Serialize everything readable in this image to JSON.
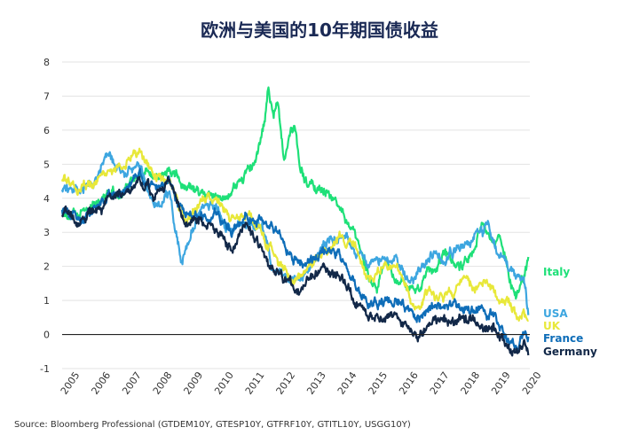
{
  "chart_data": {
    "type": "line",
    "title": "欧洲与美国的10年期国债收益",
    "source": "Source: Bloomberg Professional (GTDEM10Y, GTESP10Y, GTFRF10Y, GTITL10Y, USGG10Y)",
    "xlim": [
      2005,
      2020.2
    ],
    "ylim": [
      -1,
      8
    ],
    "yticks": [
      "8",
      "7",
      "6",
      "5",
      "4",
      "3",
      "2",
      "1",
      "0",
      "-1"
    ],
    "xticks": [
      "2005",
      "2006",
      "2007",
      "2008",
      "2009",
      "2010",
      "2011",
      "2012",
      "2013",
      "2014",
      "2015",
      "2016",
      "2017",
      "2018",
      "2019",
      "2020"
    ],
    "grid": "horizontal",
    "series": [
      {
        "name": "Italy",
        "color": "#1ee078",
        "x": [
          2005.0,
          2005.5,
          2006.0,
          2006.5,
          2007.0,
          2007.5,
          2008.0,
          2008.5,
          2009.0,
          2009.5,
          2010.0,
          2010.5,
          2011.0,
          2011.3,
          2011.55,
          2011.7,
          2011.85,
          2012.0,
          2012.2,
          2012.4,
          2012.55,
          2012.7,
          2013.0,
          2013.5,
          2014.0,
          2014.5,
          2015.0,
          2015.25,
          2015.5,
          2016.0,
          2016.5,
          2017.0,
          2017.5,
          2018.0,
          2018.35,
          2018.6,
          2018.8,
          2019.0,
          2019.3,
          2019.6,
          2019.75,
          2020.0,
          2020.15
        ],
        "y": [
          3.7,
          3.4,
          3.9,
          4.2,
          4.1,
          4.8,
          4.6,
          4.8,
          4.3,
          4.1,
          4.0,
          4.2,
          4.8,
          5.1,
          6.0,
          7.2,
          6.5,
          6.8,
          5.2,
          6.0,
          6.2,
          5.0,
          4.4,
          4.3,
          3.8,
          2.8,
          1.6,
          1.4,
          2.1,
          1.5,
          1.2,
          1.9,
          2.2,
          2.0,
          2.5,
          3.3,
          3.0,
          2.8,
          2.6,
          1.6,
          1.0,
          1.6,
          2.2
        ]
      },
      {
        "name": "USA",
        "color": "#3da6e0",
        "x": [
          2005.0,
          2005.5,
          2006.0,
          2006.5,
          2007.0,
          2007.5,
          2008.0,
          2008.5,
          2008.9,
          2009.0,
          2009.5,
          2010.0,
          2010.5,
          2011.0,
          2011.5,
          2011.8,
          2012.0,
          2012.5,
          2013.0,
          2013.5,
          2014.0,
          2014.5,
          2015.0,
          2015.5,
          2016.0,
          2016.5,
          2017.0,
          2017.5,
          2018.0,
          2018.5,
          2018.85,
          2019.0,
          2019.5,
          2019.8,
          2020.0,
          2020.15
        ],
        "y": [
          4.3,
          4.2,
          4.5,
          5.2,
          4.8,
          5.0,
          3.8,
          4.0,
          2.2,
          2.5,
          3.7,
          3.8,
          3.0,
          3.4,
          3.1,
          2.0,
          1.9,
          1.6,
          1.9,
          2.6,
          2.9,
          2.5,
          2.0,
          2.2,
          1.8,
          1.5,
          2.4,
          2.3,
          2.5,
          2.9,
          3.2,
          2.7,
          2.0,
          1.7,
          1.8,
          0.7
        ]
      },
      {
        "name": "UK",
        "color": "#e8e83a",
        "x": [
          2005.0,
          2005.5,
          2006.0,
          2006.5,
          2007.0,
          2007.5,
          2008.0,
          2008.5,
          2009.0,
          2009.5,
          2010.0,
          2010.5,
          2011.0,
          2011.5,
          2011.8,
          2012.0,
          2012.5,
          2013.0,
          2013.5,
          2014.0,
          2014.5,
          2015.0,
          2015.5,
          2016.0,
          2016.5,
          2017.0,
          2017.5,
          2018.0,
          2018.5,
          2019.0,
          2019.5,
          2019.8,
          2020.0,
          2020.15
        ],
        "y": [
          4.6,
          4.3,
          4.5,
          4.7,
          5.0,
          5.4,
          4.6,
          4.6,
          3.3,
          3.8,
          4.0,
          3.4,
          3.6,
          3.1,
          2.4,
          2.1,
          1.6,
          1.9,
          2.5,
          2.8,
          2.5,
          1.7,
          2.0,
          1.8,
          0.8,
          1.3,
          1.2,
          1.4,
          1.4,
          1.3,
          0.9,
          0.5,
          0.8,
          0.3
        ]
      },
      {
        "name": "France",
        "color": "#0e6db8",
        "x": [
          2005.0,
          2005.5,
          2006.0,
          2006.5,
          2007.0,
          2007.5,
          2008.0,
          2008.5,
          2009.0,
          2009.5,
          2010.0,
          2010.5,
          2011.0,
          2011.5,
          2011.8,
          2012.0,
          2012.5,
          2013.0,
          2013.5,
          2014.0,
          2014.5,
          2015.0,
          2015.5,
          2016.0,
          2016.5,
          2017.0,
          2017.5,
          2018.0,
          2018.5,
          2019.0,
          2019.5,
          2019.8,
          2020.0,
          2020.15
        ],
        "y": [
          3.7,
          3.3,
          3.6,
          4.0,
          4.2,
          4.6,
          4.2,
          4.5,
          3.5,
          3.6,
          3.5,
          3.0,
          3.5,
          3.3,
          3.3,
          3.0,
          2.2,
          2.2,
          2.5,
          2.4,
          1.5,
          0.8,
          1.0,
          0.9,
          0.3,
          0.8,
          0.8,
          0.8,
          0.7,
          0.6,
          -0.2,
          -0.3,
          0.0,
          -0.1
        ]
      },
      {
        "name": "Germany",
        "color": "#122848",
        "x": [
          2005.0,
          2005.5,
          2006.0,
          2006.5,
          2007.0,
          2007.5,
          2008.0,
          2008.5,
          2009.0,
          2009.5,
          2010.0,
          2010.5,
          2011.0,
          2011.5,
          2011.8,
          2012.0,
          2012.5,
          2013.0,
          2013.5,
          2014.0,
          2014.5,
          2015.0,
          2015.5,
          2016.0,
          2016.5,
          2017.0,
          2017.5,
          2018.0,
          2018.5,
          2019.0,
          2019.5,
          2019.8,
          2020.0,
          2020.15
        ],
        "y": [
          3.6,
          3.2,
          3.5,
          4.0,
          4.1,
          4.6,
          4.0,
          4.4,
          3.1,
          3.3,
          3.2,
          2.4,
          3.2,
          2.4,
          1.9,
          1.8,
          1.3,
          1.6,
          2.0,
          1.8,
          1.0,
          0.4,
          0.6,
          0.5,
          -0.1,
          0.3,
          0.4,
          0.5,
          0.3,
          0.2,
          -0.5,
          -0.6,
          -0.3,
          -0.5
        ]
      }
    ],
    "legend": [
      {
        "label": "Italy",
        "color": "#1ee078"
      },
      {
        "label": "USA",
        "color": "#3da6e0"
      },
      {
        "label": "UK",
        "color": "#e8e83a"
      },
      {
        "label": "France",
        "color": "#0e6db8"
      },
      {
        "label": "Germany",
        "color": "#122848"
      }
    ]
  }
}
